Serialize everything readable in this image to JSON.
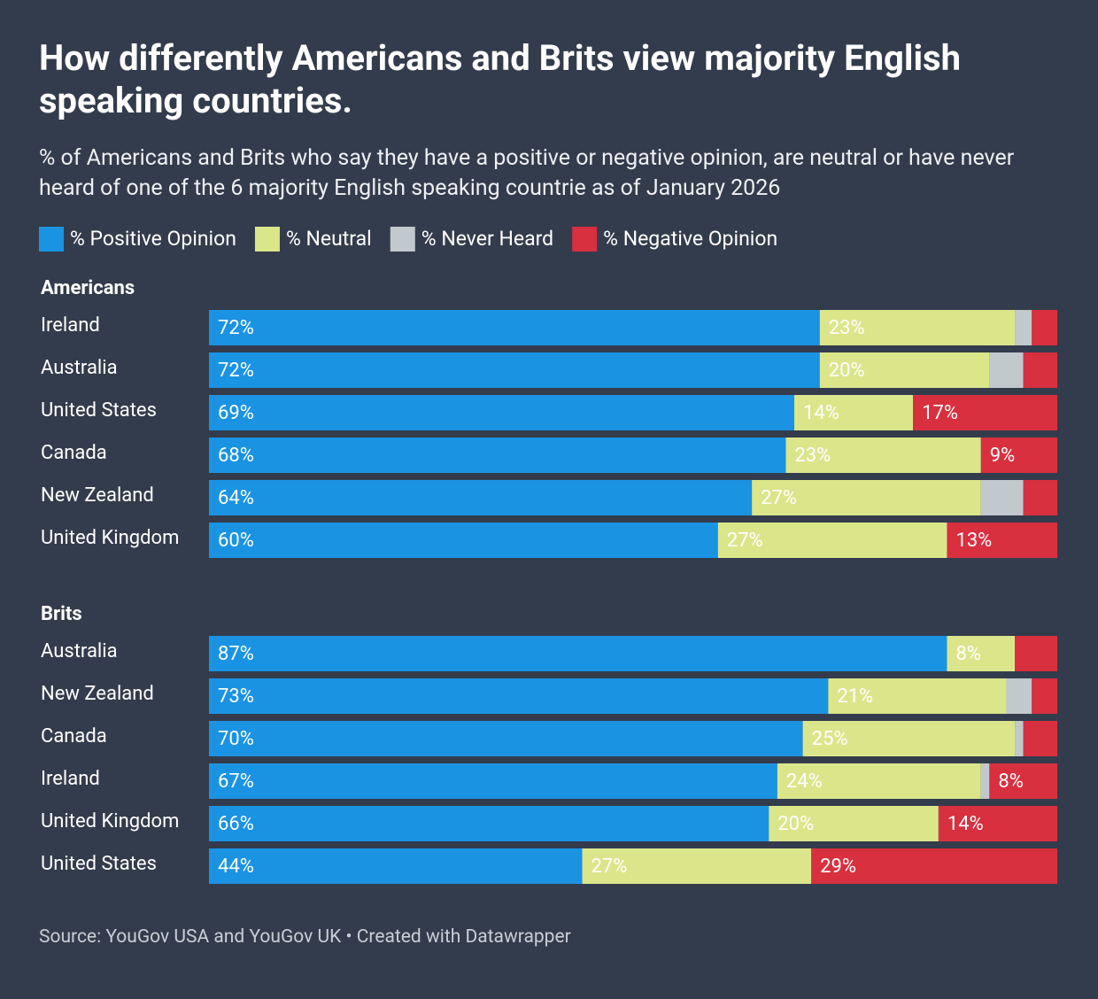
{
  "title": "How differently Americans and Brits view majority English speaking countries.",
  "subtitle": "% of Americans and Brits who say they have a positive or negative opinion, are neutral or have never heard of one of the 6 majority English speaking countrie as of January 2026",
  "source": "Source: YouGov USA and YouGov UK • Created with Datawrapper",
  "chart_data": [
    {
      "type": "bar",
      "title": "Americans",
      "categories": [
        "Ireland",
        "Australia",
        "United States",
        "Canada",
        "New Zealand",
        "United Kingdom"
      ],
      "xlim": [
        0,
        100
      ],
      "series": [
        {
          "name": "% Positive Opinion",
          "color": "#1b93e3",
          "values": [
            72,
            72,
            69,
            68,
            64,
            60
          ],
          "value_labels": [
            "72%",
            "72%",
            "69%",
            "68%",
            "64%",
            "60%"
          ]
        },
        {
          "name": "% Neutral",
          "color": "#dbe68b",
          "values": [
            23,
            20,
            14,
            23,
            27,
            27
          ],
          "value_labels": [
            "23%",
            "20%",
            "14%",
            "23%",
            "27%",
            "27%"
          ]
        },
        {
          "name": "% Never Heard",
          "color": "#c2c9cc",
          "values": [
            2,
            4,
            0,
            0,
            5,
            0
          ],
          "value_labels": [
            null,
            null,
            null,
            null,
            null,
            null
          ]
        },
        {
          "name": "% Negative Opinion",
          "color": "#d8303f",
          "values": [
            3,
            4,
            17,
            9,
            4,
            13
          ],
          "value_labels": [
            null,
            null,
            "17%",
            "9%",
            null,
            "13%"
          ]
        }
      ]
    },
    {
      "type": "bar",
      "title": "Brits",
      "categories": [
        "Australia",
        "New Zealand",
        "Canada",
        "Ireland",
        "United Kingdom",
        "United States"
      ],
      "xlim": [
        0,
        100
      ],
      "series": [
        {
          "name": "% Positive Opinion",
          "color": "#1b93e3",
          "values": [
            87,
            73,
            70,
            67,
            66,
            44
          ],
          "value_labels": [
            "87%",
            "73%",
            "70%",
            "67%",
            "66%",
            "44%"
          ]
        },
        {
          "name": "% Neutral",
          "color": "#dbe68b",
          "values": [
            8,
            21,
            25,
            24,
            20,
            27
          ],
          "value_labels": [
            "8%",
            "21%",
            "25%",
            "24%",
            "20%",
            "27%"
          ]
        },
        {
          "name": "% Never Heard",
          "color": "#c2c9cc",
          "values": [
            0,
            3,
            1,
            1,
            0,
            0
          ],
          "value_labels": [
            null,
            null,
            null,
            null,
            null,
            null
          ]
        },
        {
          "name": "% Negative Opinion",
          "color": "#d8303f",
          "values": [
            5,
            3,
            4,
            8,
            14,
            29
          ],
          "value_labels": [
            null,
            null,
            null,
            "8%",
            "14%",
            "29%"
          ]
        }
      ]
    }
  ]
}
